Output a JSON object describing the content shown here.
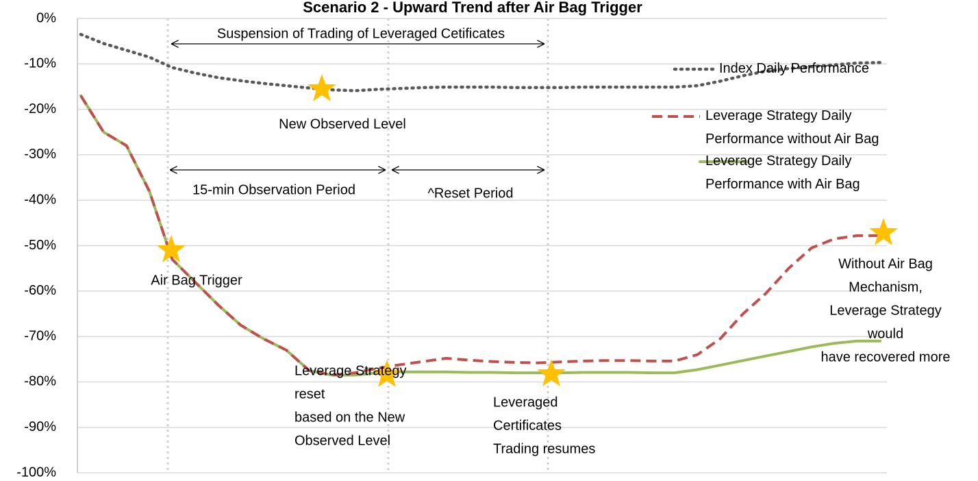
{
  "chart_data": {
    "type": "line",
    "title": "Scenario 2 - Upward Trend after Air Bag Trigger",
    "categories": [
      null,
      null,
      null,
      null,
      null,
      null,
      null,
      null,
      null,
      null,
      null,
      null,
      null,
      null,
      null,
      null,
      null,
      null,
      null,
      null,
      null,
      null,
      null,
      null,
      null,
      null,
      null,
      null,
      null,
      null,
      null,
      null,
      null,
      null,
      null,
      null
    ],
    "series": [
      {
        "name": "Index Daily Performance",
        "color": "#595959",
        "style": "dotted",
        "values": [
          -3.5,
          -5.5,
          -7,
          -8.5,
          -10.8,
          -12,
          -13,
          -13.7,
          -14.3,
          -14.8,
          -15.3,
          -15.7,
          -15.9,
          -15.6,
          -15.4,
          -15.2,
          -15.1,
          -15.1,
          -15.1,
          -15.2,
          -15.2,
          -15.2,
          -15.1,
          -15.1,
          -15.1,
          -15.1,
          -15.1,
          -14.8,
          -13.8,
          -12.6,
          -11.6,
          -11,
          -10.6,
          -10.2,
          -9.8,
          -9.7
        ]
      },
      {
        "name": "Leverage Strategy Daily Performance without Air Bag",
        "color": "#C0504D",
        "style": "dashed",
        "values": [
          -17,
          -25,
          -28,
          -38,
          -53,
          -58,
          -63,
          -67.5,
          -70.5,
          -73,
          -77.5,
          -78.5,
          -78,
          -77,
          -76.2,
          -75.5,
          -74.8,
          -75.2,
          -75.5,
          -75.7,
          -75.8,
          -75.6,
          -75.4,
          -75.3,
          -75.3,
          -75.4,
          -75.4,
          -74,
          -70.5,
          -65,
          -60.5,
          -55,
          -50.5,
          -48.5,
          -47.8,
          -47.8
        ]
      },
      {
        "name": "Leverage Strategy Daily Performance with Air Bag",
        "color": "#9BBB59",
        "style": "solid",
        "values": [
          -17,
          -25,
          -28,
          -38,
          -53,
          -58,
          -63,
          -67.5,
          -70.5,
          -73,
          -77.5,
          -78.5,
          -78.5,
          -78,
          -77.8,
          -77.8,
          -77.8,
          -77.9,
          -77.9,
          -78,
          -78,
          -78,
          -77.9,
          -77.9,
          -77.9,
          -78,
          -78,
          -77.3,
          -76.3,
          -75.3,
          -74.3,
          -73.3,
          -72.3,
          -71.5,
          -71,
          -71
        ]
      }
    ],
    "ylim": [
      -100,
      0
    ],
    "yticks": [
      {
        "value": 0,
        "label": "0%"
      },
      {
        "value": -10,
        "label": "-10%"
      },
      {
        "value": -20,
        "label": "-20%"
      },
      {
        "value": -30,
        "label": "-30%"
      },
      {
        "value": -40,
        "label": "-40%"
      },
      {
        "value": -50,
        "label": "-50%"
      },
      {
        "value": -60,
        "label": "-60%"
      },
      {
        "value": -70,
        "label": "-70%"
      },
      {
        "value": -80,
        "label": "-80%"
      },
      {
        "value": -90,
        "label": "-90%"
      },
      {
        "value": -100,
        "label": "-100%"
      }
    ],
    "grid": true,
    "legend": "right",
    "annotations": [
      {
        "lines": [
          "Suspension of Trading of Leveraged Cetificates"
        ]
      },
      {
        "lines": [
          "New Observed Level"
        ]
      },
      {
        "lines": [
          "15-min Observation Period"
        ]
      },
      {
        "lines": [
          "^Reset Period"
        ]
      },
      {
        "lines": [
          "Air Bag Trigger"
        ]
      },
      {
        "lines": [
          "Leverage Strategy",
          "reset",
          "based on the New",
          "Observed Level"
        ]
      },
      {
        "lines": [
          "Leveraged",
          "Certificates",
          "Trading resumes"
        ]
      },
      {
        "lines": [
          "Without Air Bag",
          "Mechanism,",
          "Leverage Strategy",
          "would",
          "have recovered more"
        ]
      }
    ]
  }
}
